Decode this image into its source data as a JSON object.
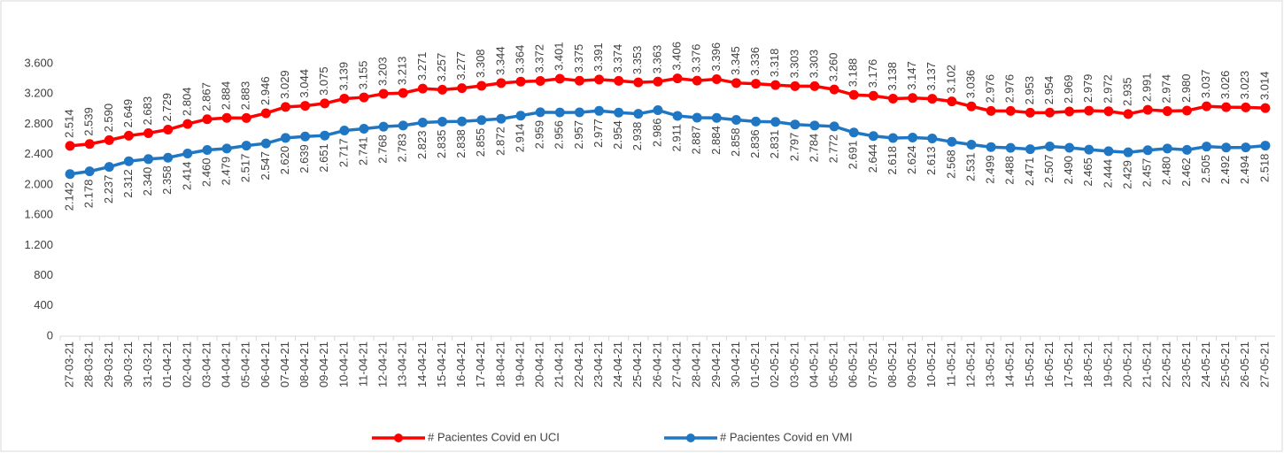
{
  "chart_data": {
    "type": "line",
    "categories": [
      "27-03-21",
      "28-03-21",
      "29-03-21",
      "30-03-21",
      "31-03-21",
      "01-04-21",
      "02-04-21",
      "03-04-21",
      "04-04-21",
      "05-04-21",
      "06-04-21",
      "07-04-21",
      "08-04-21",
      "09-04-21",
      "10-04-21",
      "11-04-21",
      "12-04-21",
      "13-04-21",
      "14-04-21",
      "15-04-21",
      "16-04-21",
      "17-04-21",
      "18-04-21",
      "19-04-21",
      "20-04-21",
      "21-04-21",
      "22-04-21",
      "23-04-21",
      "24-04-21",
      "25-04-21",
      "26-04-21",
      "27-04-21",
      "28-04-21",
      "29-04-21",
      "30-04-21",
      "01-05-21",
      "02-05-21",
      "03-05-21",
      "04-05-21",
      "05-05-21",
      "06-05-21",
      "07-05-21",
      "08-05-21",
      "09-05-21",
      "10-05-21",
      "11-05-21",
      "12-05-21",
      "13-05-21",
      "14-05-21",
      "15-05-21",
      "16-05-21",
      "17-05-21",
      "18-05-21",
      "19-05-21",
      "20-05-21",
      "21-05-21",
      "22-05-21",
      "23-05-21",
      "24-05-21",
      "25-05-21",
      "26-05-21",
      "27-05-21"
    ],
    "series": [
      {
        "name": "# Pacientes Covid en UCI",
        "color": "#ff0000",
        "values": [
          2514,
          2539,
          2590,
          2649,
          2683,
          2729,
          2804,
          2867,
          2884,
          2883,
          2946,
          3029,
          3044,
          3075,
          3139,
          3155,
          3203,
          3213,
          3271,
          3257,
          3277,
          3308,
          3344,
          3364,
          3372,
          3401,
          3375,
          3391,
          3374,
          3353,
          3363,
          3406,
          3376,
          3396,
          3345,
          3336,
          3318,
          3303,
          3303,
          3260,
          3188,
          3176,
          3138,
          3147,
          3137,
          3102,
          3036,
          2976,
          2976,
          2953,
          2954,
          2969,
          2979,
          2972,
          2935,
          2991,
          2974,
          2980,
          3037,
          3026,
          3023,
          3014
        ],
        "value_labels": [
          "2.514",
          "2.539",
          "2.590",
          "2.649",
          "2.683",
          "2.729",
          "2.804",
          "2.867",
          "2.884",
          "2.883",
          "2.946",
          "3.029",
          "3.044",
          "3.075",
          "3.139",
          "3.155",
          "3.203",
          "3.213",
          "3.271",
          "3.257",
          "3.277",
          "3.308",
          "3.344",
          "3.364",
          "3.372",
          "3.401",
          "3.375",
          "3.391",
          "3.374",
          "3.353",
          "3.363",
          "3.406",
          "3.376",
          "3.396",
          "3.345",
          "3.336",
          "3.318",
          "3.303",
          "3.303",
          "3.260",
          "3.188",
          "3.176",
          "3.138",
          "3.147",
          "3.137",
          "3.102",
          "3.036",
          "2.976",
          "2.976",
          "2.953",
          "2.954",
          "2.969",
          "2.979",
          "2.972",
          "2.935",
          "2.991",
          "2.974",
          "2.980",
          "3.037",
          "3.026",
          "3.023",
          "3.014"
        ]
      },
      {
        "name": "# Pacientes Covid en VMI",
        "color": "#1f77c4",
        "values": [
          2142,
          2178,
          2237,
          2312,
          2340,
          2358,
          2414,
          2460,
          2479,
          2517,
          2547,
          2620,
          2639,
          2651,
          2717,
          2741,
          2768,
          2783,
          2823,
          2835,
          2838,
          2855,
          2872,
          2914,
          2959,
          2956,
          2957,
          2977,
          2954,
          2938,
          2986,
          2911,
          2887,
          2884,
          2858,
          2836,
          2831,
          2797,
          2784,
          2772,
          2691,
          2644,
          2618,
          2624,
          2613,
          2568,
          2531,
          2499,
          2488,
          2471,
          2507,
          2490,
          2465,
          2444,
          2429,
          2457,
          2480,
          2462,
          2505,
          2492,
          2494,
          2518
        ],
        "value_labels": [
          "2.142",
          "2.178",
          "2.237",
          "2.312",
          "2.340",
          "2.358",
          "2.414",
          "2.460",
          "2.479",
          "2.517",
          "2.547",
          "2.620",
          "2.639",
          "2.651",
          "2.717",
          "2.741",
          "2.768",
          "2.783",
          "2.823",
          "2.835",
          "2.838",
          "2.855",
          "2.872",
          "2.914",
          "2.959",
          "2.956",
          "2.957",
          "2.977",
          "2.954",
          "2.938",
          "2.986",
          "2.911",
          "2.887",
          "2.884",
          "2.858",
          "2.836",
          "2.831",
          "2.797",
          "2.784",
          "2.772",
          "2.691",
          "2.644",
          "2.618",
          "2.624",
          "2.613",
          "2.568",
          "2.531",
          "2.499",
          "2.488",
          "2.471",
          "2.507",
          "2.490",
          "2.465",
          "2.444",
          "2.429",
          "2.457",
          "2.480",
          "2.462",
          "2.505",
          "2.492",
          "2.494",
          "2.518"
        ]
      }
    ],
    "ylim": [
      0,
      3600
    ],
    "yticks": [
      0,
      400,
      800,
      {
        "value": 1200,
        "label": "1.200"
      },
      {
        "value": 1600,
        "label": "1.600"
      },
      {
        "value": 2000,
        "label": "2.000"
      },
      {
        "value": 2400,
        "label": "2.400"
      },
      {
        "value": 2800,
        "label": "2.800"
      },
      {
        "value": 3200,
        "label": "3.200"
      },
      {
        "value": 3600,
        "label": "3.600"
      }
    ],
    "grid": false,
    "legend": "bottom"
  }
}
